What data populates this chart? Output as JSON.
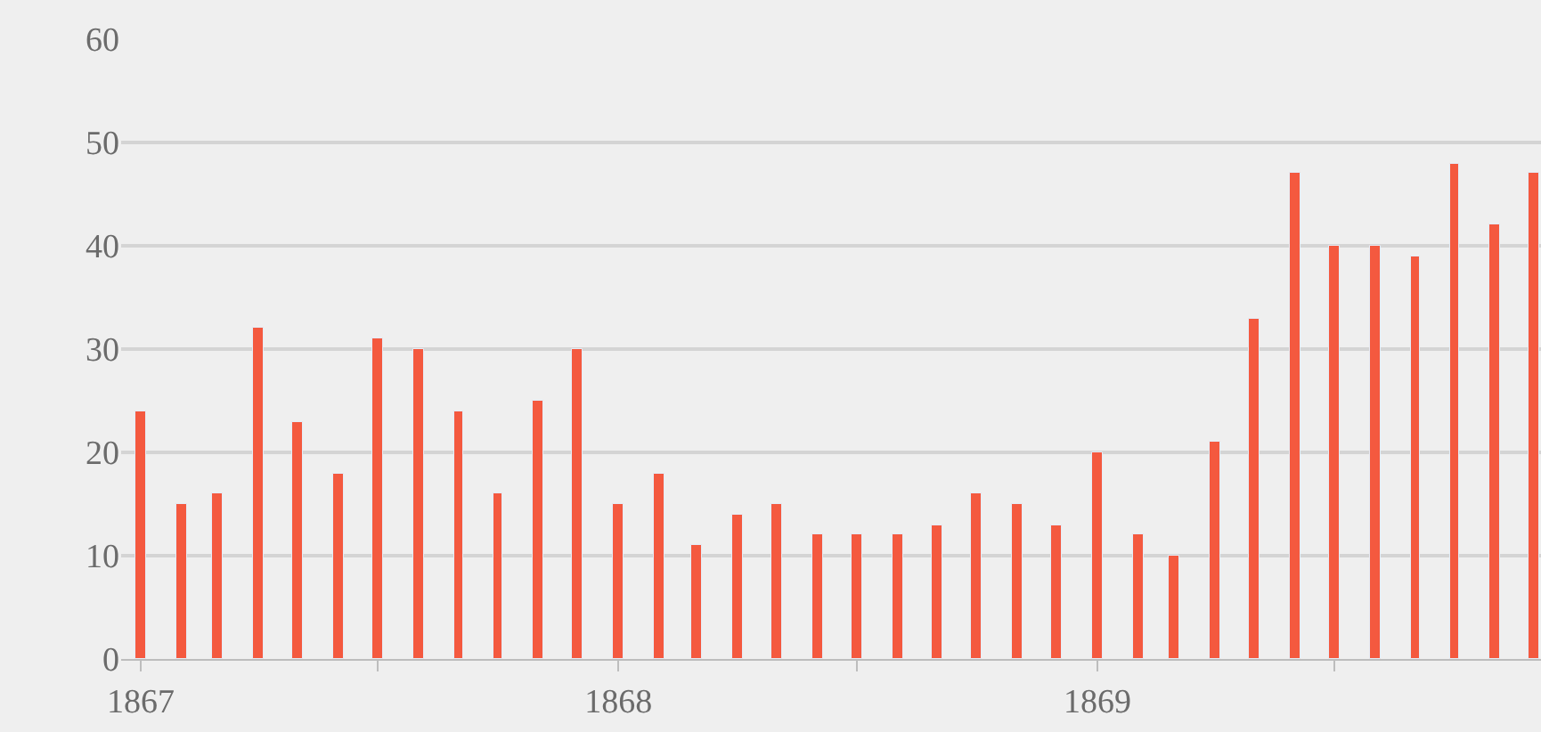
{
  "chart_data": {
    "type": "bar",
    "x": [
      "1867-01",
      "1867-02",
      "1867-03",
      "1867-04",
      "1867-05",
      "1867-06",
      "1867-07",
      "1867-08",
      "1867-09",
      "1867-10",
      "1867-11",
      "1867-12",
      "1868-01",
      "1868-02",
      "1868-03",
      "1868-04",
      "1868-05",
      "1868-06",
      "1868-07",
      "1868-08",
      "1868-09",
      "1868-10",
      "1868-11",
      "1868-12",
      "1869-01",
      "1869-02",
      "1869-03",
      "1869-04",
      "1869-05",
      "1869-06",
      "1869-07",
      "1869-08",
      "1869-09",
      "1869-10",
      "1869-11",
      "1869-12"
    ],
    "values": [
      24,
      15,
      16,
      32,
      23,
      18,
      31,
      30,
      24,
      16,
      25,
      30,
      15,
      18,
      11,
      14,
      15,
      12,
      12,
      12,
      13,
      16,
      15,
      13,
      20,
      12,
      10,
      21,
      33,
      47,
      40,
      40,
      39,
      48,
      42,
      47
    ],
    "color": "#f4593f",
    "xlim": [
      "1866-12-17",
      "1869-12-06"
    ],
    "xticks": [
      {
        "value": "1867-01",
        "label": "1867"
      },
      {
        "value": "1867-07",
        "label": null
      },
      {
        "value": "1868-01",
        "label": "1868"
      },
      {
        "value": "1868-07",
        "label": null
      },
      {
        "value": "1869-01",
        "label": "1869"
      },
      {
        "value": "1869-07",
        "label": null
      }
    ],
    "ylim": [
      0,
      60
    ],
    "yticks": [
      0,
      10,
      20,
      30,
      40,
      50,
      60
    ],
    "grid": "y"
  }
}
